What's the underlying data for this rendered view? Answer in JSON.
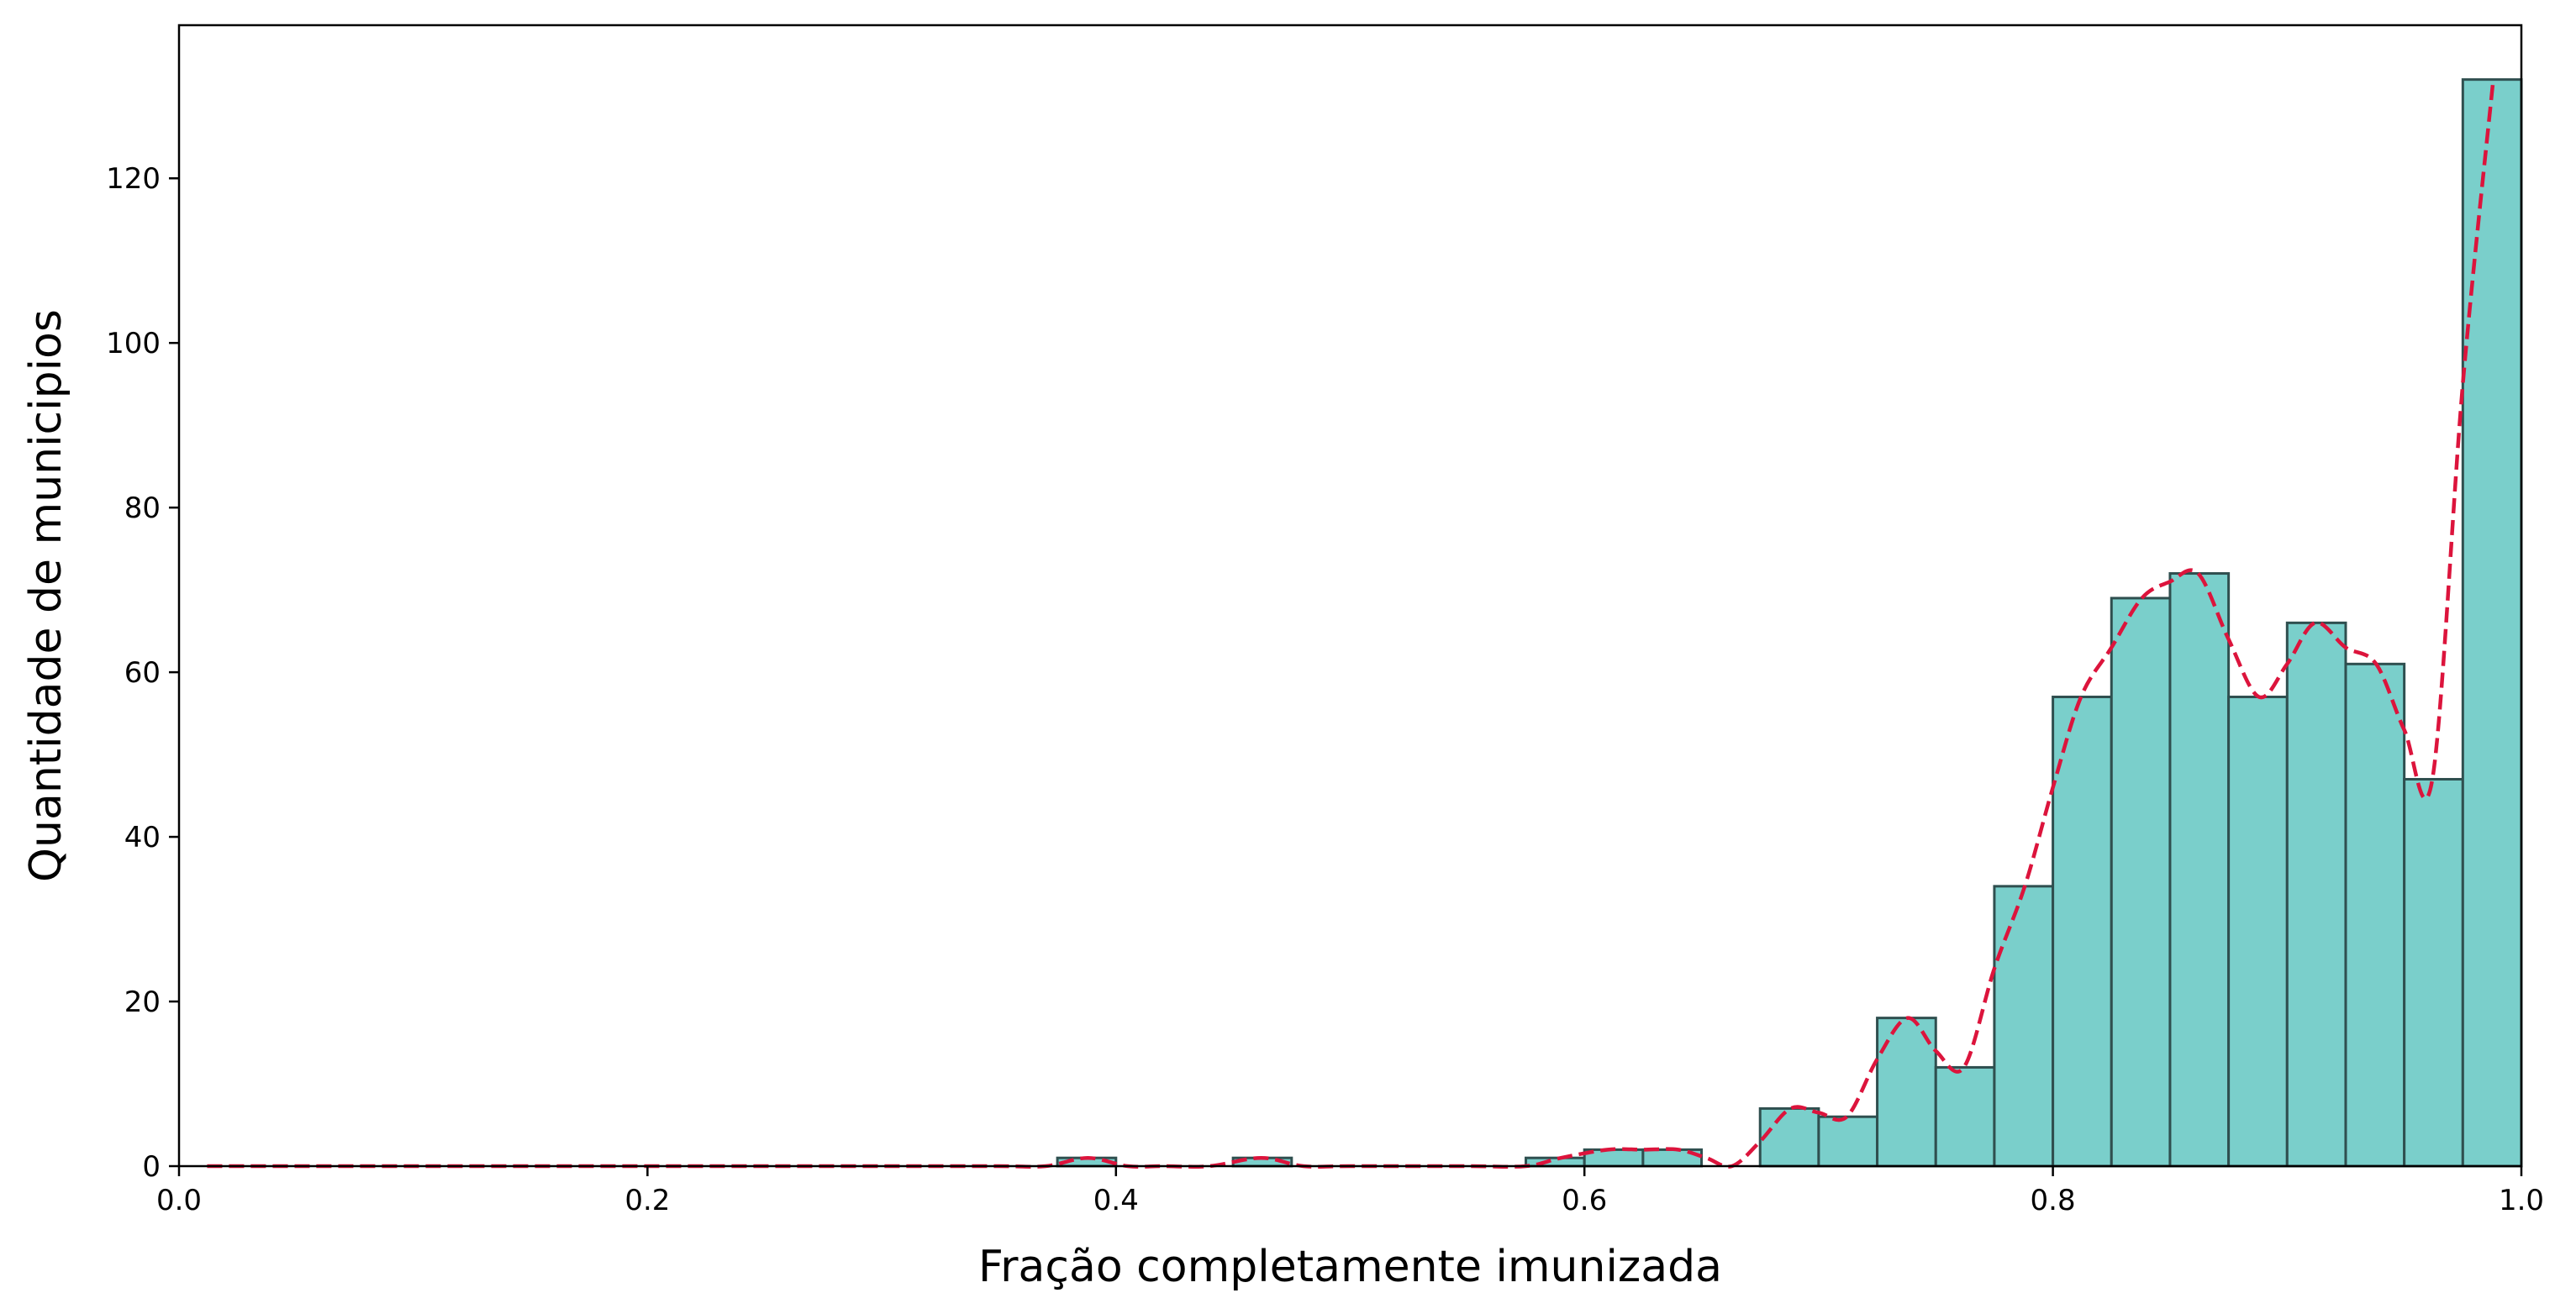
{
  "chart_data": {
    "type": "bar",
    "subtype": "histogram",
    "title": "",
    "xlabel": "Fração completamente imunizada",
    "ylabel": "Quantidade de municipios",
    "xlim": [
      0.0,
      1.0
    ],
    "ylim": [
      0,
      138.6
    ],
    "x_ticks": [
      "0.0",
      "0.2",
      "0.4",
      "0.6",
      "0.8",
      "1.0"
    ],
    "y_ticks": [
      "0",
      "20",
      "40",
      "60",
      "80",
      "100",
      "120"
    ],
    "grid": false,
    "bins": [
      {
        "start": 0.375,
        "end": 0.4,
        "count": 1
      },
      {
        "start": 0.45,
        "end": 0.475,
        "count": 1
      },
      {
        "start": 0.575,
        "end": 0.6,
        "count": 1
      },
      {
        "start": 0.6,
        "end": 0.625,
        "count": 2
      },
      {
        "start": 0.625,
        "end": 0.65,
        "count": 2
      },
      {
        "start": 0.675,
        "end": 0.7,
        "count": 7
      },
      {
        "start": 0.7,
        "end": 0.725,
        "count": 6
      },
      {
        "start": 0.725,
        "end": 0.75,
        "count": 18
      },
      {
        "start": 0.75,
        "end": 0.775,
        "count": 12
      },
      {
        "start": 0.775,
        "end": 0.8,
        "count": 34
      },
      {
        "start": 0.8,
        "end": 0.825,
        "count": 57
      },
      {
        "start": 0.825,
        "end": 0.85,
        "count": 69
      },
      {
        "start": 0.85,
        "end": 0.875,
        "count": 72
      },
      {
        "start": 0.875,
        "end": 0.9,
        "count": 57
      },
      {
        "start": 0.9,
        "end": 0.925,
        "count": 66
      },
      {
        "start": 0.925,
        "end": 0.95,
        "count": 61
      },
      {
        "start": 0.95,
        "end": 0.975,
        "count": 47
      },
      {
        "start": 0.975,
        "end": 1.0,
        "count": 132
      }
    ],
    "kde_line": {
      "style": "dashed",
      "x": [
        0.012,
        0.05,
        0.1,
        0.15,
        0.2,
        0.25,
        0.3,
        0.35,
        0.37,
        0.388,
        0.405,
        0.42,
        0.44,
        0.462,
        0.48,
        0.5,
        0.55,
        0.575,
        0.59,
        0.61,
        0.625,
        0.64,
        0.652,
        0.663,
        0.675,
        0.688,
        0.7,
        0.712,
        0.725,
        0.738,
        0.75,
        0.762,
        0.775,
        0.788,
        0.8,
        0.812,
        0.825,
        0.838,
        0.85,
        0.862,
        0.875,
        0.888,
        0.9,
        0.912,
        0.925,
        0.938,
        0.95,
        0.962,
        0.975,
        0.988
      ],
      "y": [
        0,
        0,
        0,
        0,
        0,
        0,
        0,
        0,
        0,
        1,
        0,
        0,
        0,
        1,
        0,
        0,
        0,
        0,
        1,
        2,
        2,
        2,
        1,
        0,
        3,
        7,
        6.5,
        6,
        13,
        18,
        14,
        12,
        24,
        34,
        46,
        57,
        63,
        69,
        71,
        72,
        64,
        57,
        61,
        66,
        63,
        61,
        53,
        47,
        95,
        132
      ]
    },
    "colors": {
      "bar_fill": "#7acfcb",
      "bar_edge": "#2f4f4f",
      "line": "#dc143c"
    }
  }
}
